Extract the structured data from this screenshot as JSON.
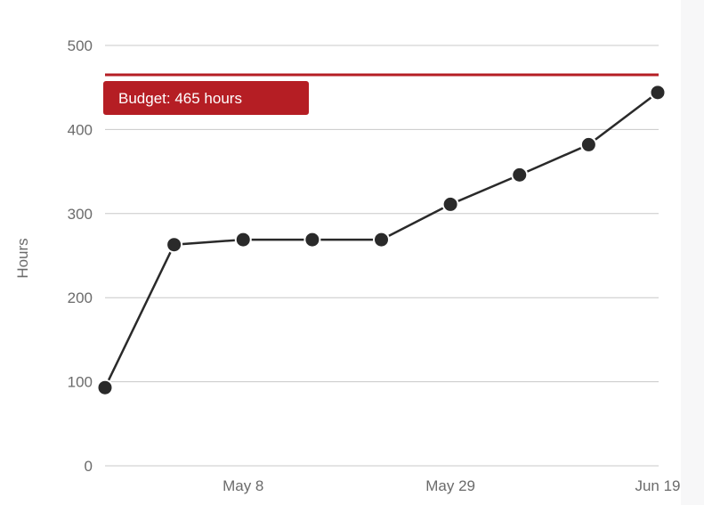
{
  "chart_data": {
    "type": "line",
    "title": "",
    "xlabel": "",
    "ylabel": "Hours",
    "ylim": [
      0,
      500
    ],
    "yticks": [
      0,
      100,
      200,
      300,
      400,
      500
    ],
    "xlim": [
      "2018-04-24",
      "2018-06-19"
    ],
    "xtick_labels": [
      "May 8",
      "May 29",
      "Jun 19"
    ],
    "xtick_dates": [
      "2018-05-08",
      "2018-05-29",
      "2018-06-19"
    ],
    "grid": true,
    "series": [
      {
        "x": [
          "2018-04-24",
          "2018-05-01",
          "2018-05-08",
          "2018-05-15",
          "2018-05-22",
          "2018-05-29",
          "2018-06-05",
          "2018-06-12",
          "2018-06-19"
        ],
        "values": [
          93,
          263,
          269,
          269,
          269,
          311,
          346,
          382,
          444
        ],
        "color": "#2a2a2a"
      }
    ],
    "reference_line": {
      "value": 465,
      "label": "Budget: 465 hours",
      "color": "#b51e24"
    }
  }
}
